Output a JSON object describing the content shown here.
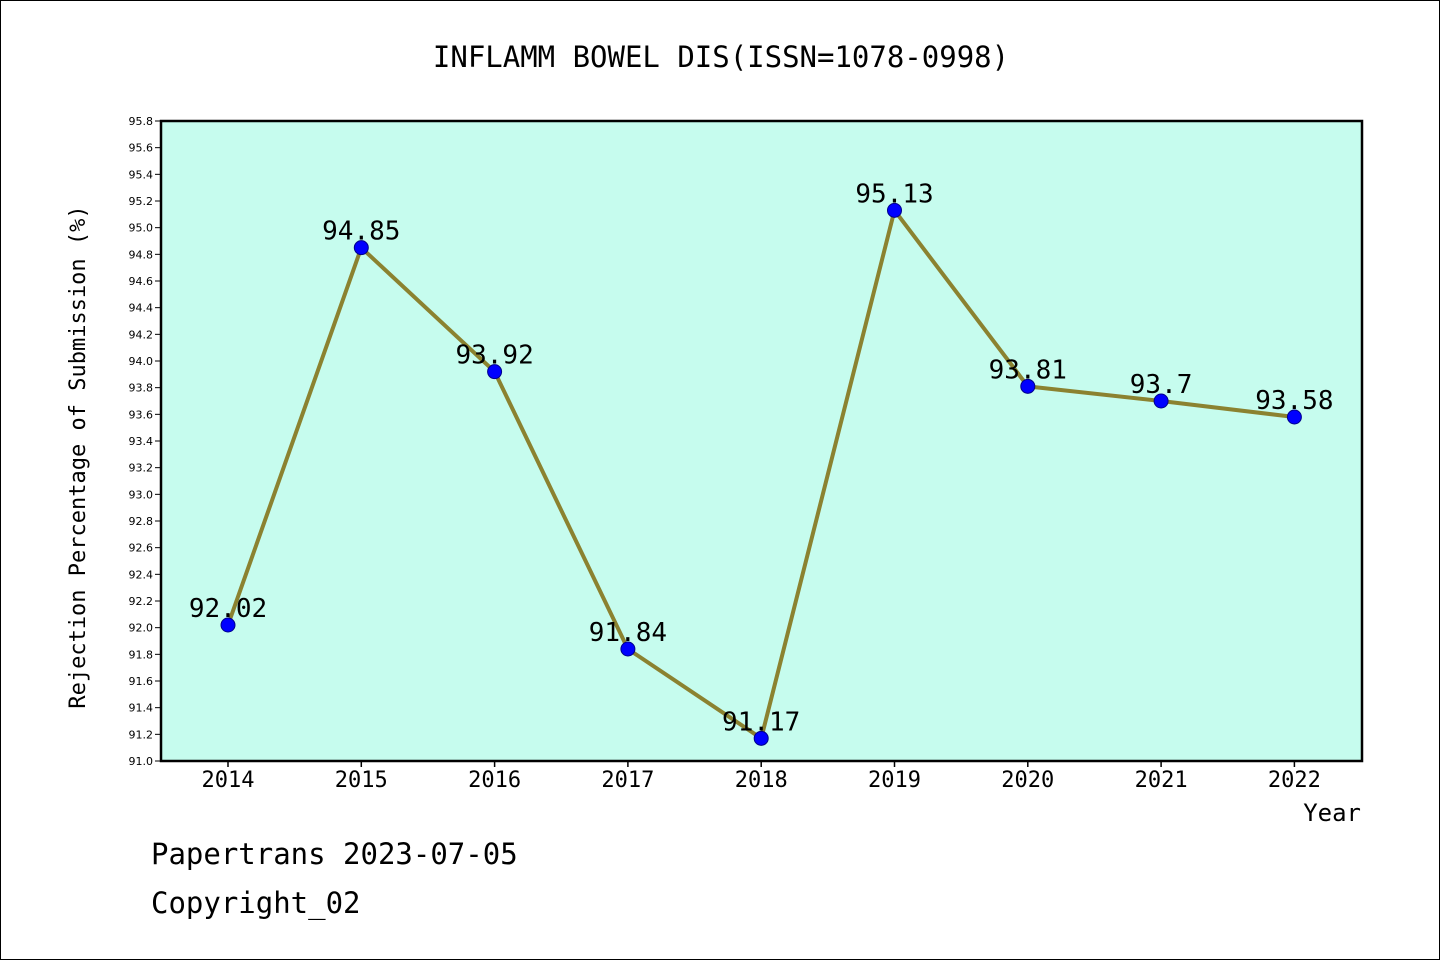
{
  "colors": {
    "plot_background": "#c6fcee",
    "line": "#8b8230",
    "marker": "#0000ff",
    "axis": "#000000"
  },
  "chart_data": {
    "type": "line",
    "title": "INFLAMM BOWEL DIS(ISSN=1078-0998)",
    "xlabel": "Year",
    "ylabel": "Rejection Percentage of Submission (%)",
    "categories": [
      "2014",
      "2015",
      "2016",
      "2017",
      "2018",
      "2019",
      "2020",
      "2021",
      "2022"
    ],
    "values": [
      92.02,
      94.85,
      93.92,
      91.84,
      91.17,
      95.13,
      93.81,
      93.7,
      93.58
    ],
    "data_labels": [
      "92.02",
      "94.85",
      "93.92",
      "91.84",
      "91.17",
      "95.13",
      "93.81",
      "93.7",
      "93.58"
    ],
    "ylim": [
      91.0,
      95.8
    ],
    "ytick_step": 0.2,
    "ytick_labels": [
      "91.0",
      "91.2",
      "91.4",
      "91.6",
      "91.8",
      "92.0",
      "92.2",
      "92.4",
      "92.6",
      "92.8",
      "93.0",
      "93.2",
      "93.4",
      "93.6",
      "93.8",
      "94.0",
      "94.2",
      "94.4",
      "94.6",
      "94.8",
      "95.0",
      "95.2",
      "95.4",
      "95.6",
      "95.8"
    ],
    "grid": false,
    "legend": "none"
  },
  "footer": {
    "line1": "Papertrans 2023-07-05",
    "line2": "Copyright_02"
  }
}
